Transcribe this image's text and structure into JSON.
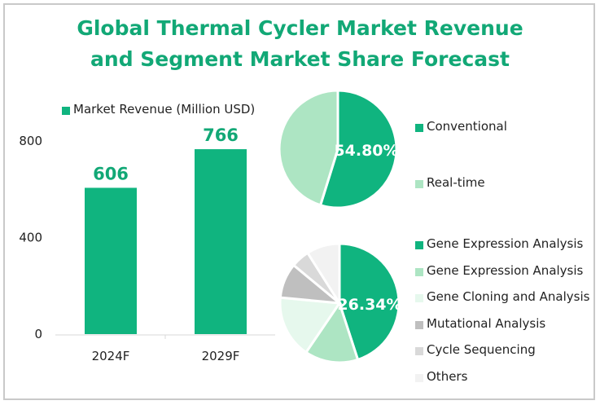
{
  "title_lines": [
    "Global Thermal Cycler Market Revenue",
    "and Segment Market Share Forecast"
  ],
  "chart_data": [
    {
      "type": "bar",
      "legend": "Market Revenue (Million USD)",
      "categories": [
        "2024F",
        "2029F"
      ],
      "values": [
        606,
        766
      ],
      "data_labels": [
        "606",
        "766"
      ],
      "yticks": [
        "0",
        "400",
        "800"
      ],
      "ylim": [
        0,
        800
      ],
      "color": "#10b47f",
      "grid": false,
      "legend_position": "top"
    },
    {
      "type": "pie",
      "labels": [
        "Conventional",
        "Real-time"
      ],
      "values": [
        54.8,
        45.2
      ],
      "data_label": "54.80%",
      "colors": [
        "#10b47f",
        "#ade5c3"
      ],
      "legend_position": "right"
    },
    {
      "type": "pie",
      "labels": [
        "Gene Expression Analysis",
        "Gene Expression Analysis",
        "Gene Cloning and Analysis",
        "Mutational Analysis",
        "Cycle Sequencing",
        "Others"
      ],
      "values": [
        45,
        14.5,
        17,
        9.5,
        5,
        9
      ],
      "data_label": "26.34%",
      "colors": [
        "#10b47f",
        "#ade5c3",
        "#e6f8ed",
        "#bfbfbf",
        "#d9d9d9",
        "#f2f2f2"
      ],
      "legend_position": "right"
    }
  ]
}
